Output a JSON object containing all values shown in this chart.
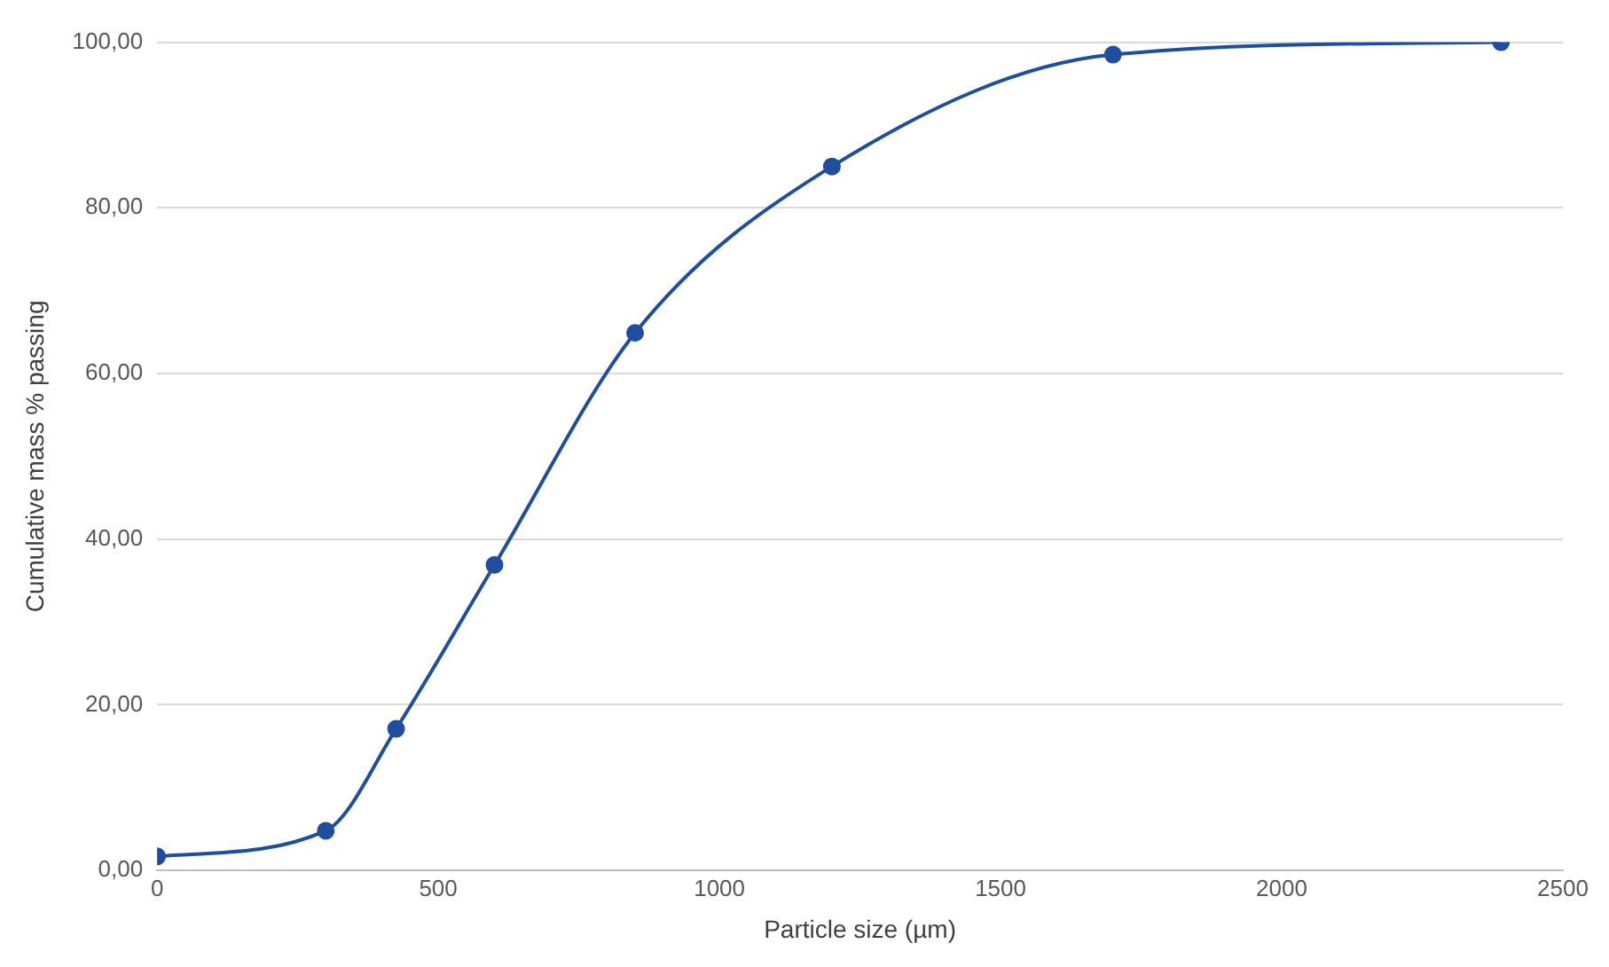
{
  "chart_data": {
    "type": "line",
    "xlabel": "Particle size (µm)",
    "ylabel": "Cumulative mass % passing",
    "x": [
      0,
      300,
      425,
      600,
      850,
      1200,
      1700,
      2390
    ],
    "series": [
      {
        "color": "#1f4e9f",
        "values": [
          1.7,
          4.8,
          17.1,
          36.9,
          64.9,
          85.0,
          98.5,
          100
        ]
      }
    ],
    "xlim": [
      0,
      2500
    ],
    "xticks": [
      0,
      500,
      1000,
      1500,
      2000,
      2500
    ],
    "ylim": [
      0,
      100
    ],
    "yticks": [
      {
        "value": 0,
        "label": "0,00"
      },
      {
        "value": 20,
        "label": "20,00"
      },
      {
        "value": 40,
        "label": "40,00"
      },
      {
        "value": 60,
        "label": "60,00"
      },
      {
        "value": 80,
        "label": "80,00"
      },
      {
        "value": 100,
        "label": "100,00"
      }
    ],
    "grid": "y",
    "legend": false,
    "marker": "circle",
    "line_style": "solid"
  }
}
